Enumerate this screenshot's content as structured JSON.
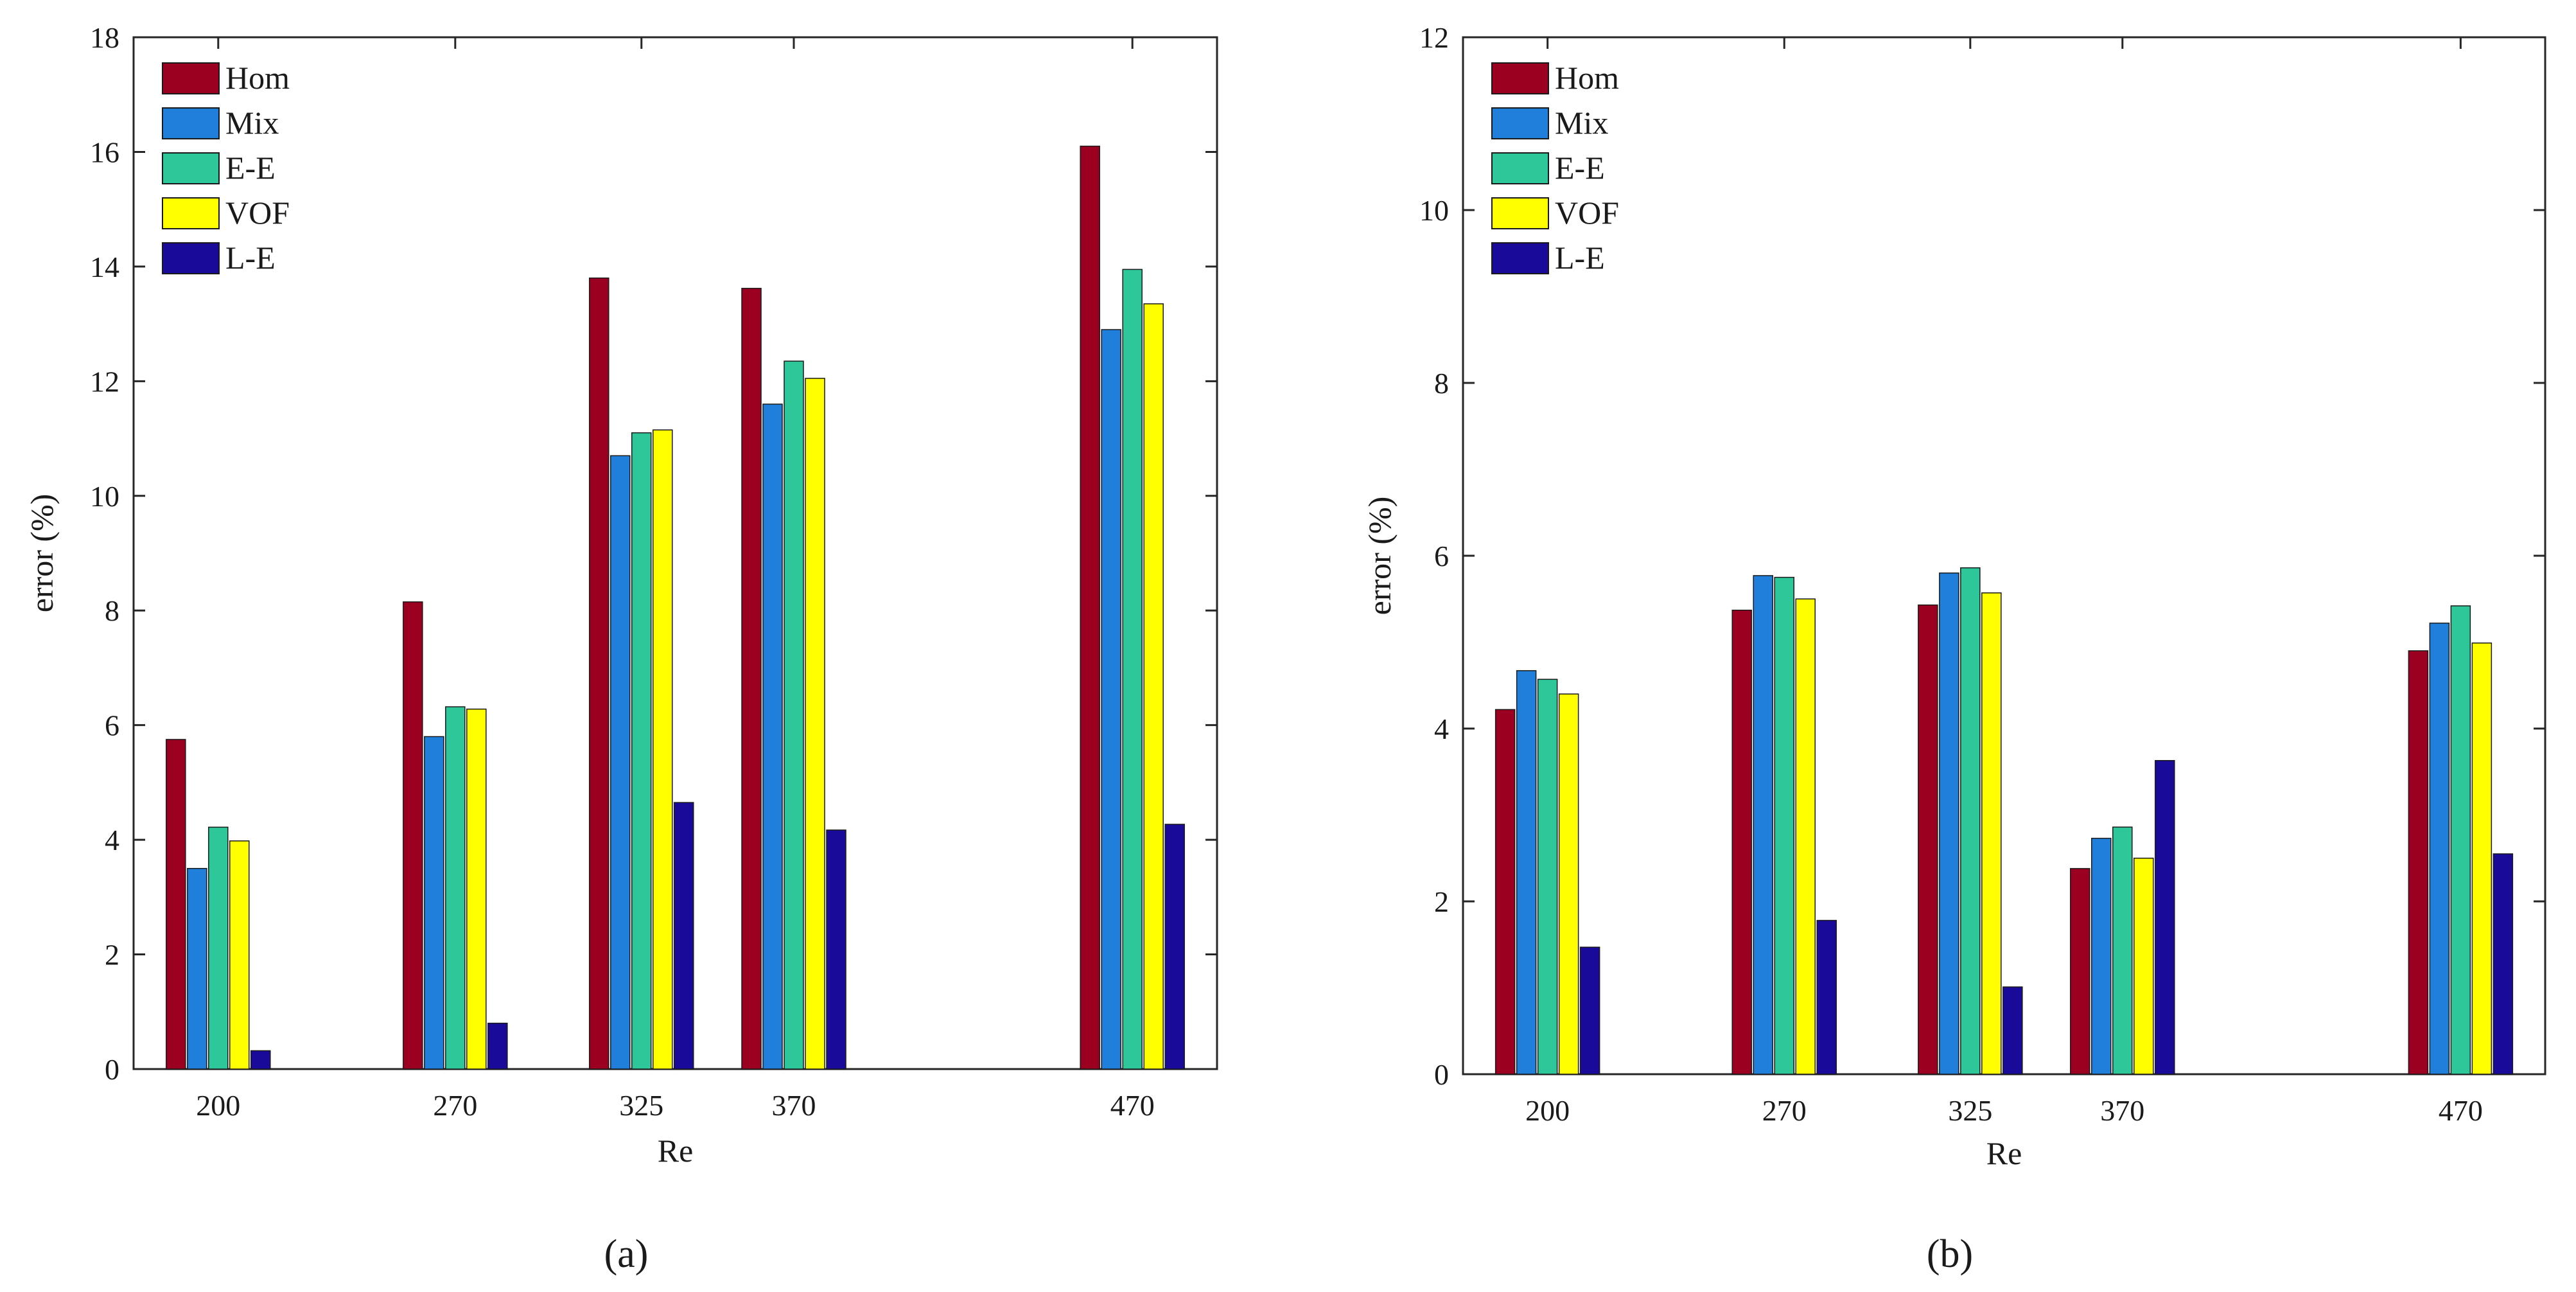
{
  "chart_data": [
    {
      "type": "bar",
      "panel_label": "(a)",
      "xlabel": "Re",
      "ylabel": "error (%)",
      "ylim": [
        0,
        18
      ],
      "yticks": [
        0,
        2,
        4,
        6,
        8,
        10,
        12,
        14,
        16,
        18
      ],
      "categories": [
        "200",
        "270",
        "325",
        "370",
        "470"
      ],
      "category_x": [
        200,
        270,
        325,
        370,
        470
      ],
      "legend_position": "top-left",
      "series": [
        {
          "name": "Hom",
          "color": "#9b0020",
          "values": [
            5.75,
            8.15,
            13.8,
            13.62,
            16.1
          ]
        },
        {
          "name": "Mix",
          "color": "#1f7fdb",
          "values": [
            3.5,
            5.8,
            10.7,
            11.6,
            12.9
          ]
        },
        {
          "name": "E-E",
          "color": "#2ec79a",
          "values": [
            4.22,
            6.32,
            11.1,
            12.35,
            13.95
          ]
        },
        {
          "name": "VOF",
          "color": "#ffff00",
          "values": [
            3.98,
            6.28,
            11.15,
            12.05,
            13.35
          ]
        },
        {
          "name": "L-E",
          "color": "#1a0a99",
          "values": [
            0.32,
            0.8,
            4.65,
            4.17,
            4.27
          ]
        }
      ]
    },
    {
      "type": "bar",
      "panel_label": "(b)",
      "xlabel": "Re",
      "ylabel": "error (%)",
      "ylim": [
        0,
        12
      ],
      "yticks": [
        0,
        2,
        4,
        6,
        8,
        10,
        12
      ],
      "categories": [
        "200",
        "270",
        "325",
        "370",
        "470"
      ],
      "category_x": [
        200,
        270,
        325,
        370,
        470
      ],
      "legend_position": "top-left",
      "series": [
        {
          "name": "Hom",
          "color": "#9b0020",
          "values": [
            4.22,
            5.37,
            5.43,
            2.38,
            4.9
          ]
        },
        {
          "name": "Mix",
          "color": "#1f7fdb",
          "values": [
            4.67,
            5.77,
            5.8,
            2.73,
            5.22
          ]
        },
        {
          "name": "E-E",
          "color": "#2ec79a",
          "values": [
            4.57,
            5.75,
            5.86,
            2.86,
            5.42
          ]
        },
        {
          "name": "VOF",
          "color": "#ffff00",
          "values": [
            4.4,
            5.5,
            5.57,
            2.5,
            4.99
          ]
        },
        {
          "name": "L-E",
          "color": "#1a0a99",
          "values": [
            1.47,
            1.78,
            1.01,
            3.63,
            2.55
          ]
        }
      ]
    }
  ]
}
